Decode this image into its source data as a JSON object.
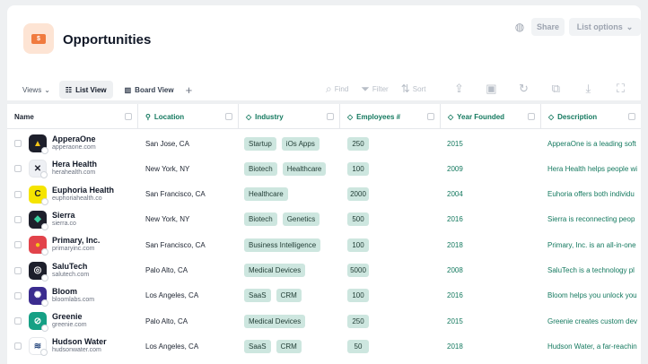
{
  "header": {
    "title": "Opportunities",
    "app_icon_glyph": "$",
    "share_label": "Share",
    "list_options_label": "List options"
  },
  "tabs": {
    "views_label": "Views",
    "list_view": "List View",
    "board_view": "Board View"
  },
  "toolbar": {
    "find": "Find",
    "filter": "Filter",
    "sort": "Sort"
  },
  "columns": {
    "name": "Name",
    "location": "Location",
    "industry": "Industry",
    "employees": "Employees #",
    "year_founded": "Year Founded",
    "description": "Description"
  },
  "rows": [
    {
      "name": "ApperaOne",
      "url": "apperaone.com",
      "location": "San Jose, CA",
      "industry": [
        "Startup",
        "iOs Apps"
      ],
      "employees": "250",
      "year": "2015",
      "description": "ApperaOne is a leading soft",
      "logo_bg": "#1d1f2b",
      "logo_fg": "#f5c518",
      "logo_glyph": "▲"
    },
    {
      "name": "Hera Health",
      "url": "herahealth.com",
      "location": "New York, NY",
      "industry": [
        "Biotech",
        "Healthcare"
      ],
      "employees": "100",
      "year": "2009",
      "description": "Hera Health helps people wi",
      "logo_bg": "#eef0f4",
      "logo_fg": "#1d1f2b",
      "logo_glyph": "✕"
    },
    {
      "name": "Euphoria Health",
      "url": "euphoriahealth.co",
      "location": "San Francisco, CA",
      "industry": [
        "Healthcare"
      ],
      "employees": "2000",
      "year": "2004",
      "description": "Euhoria offers both individu",
      "logo_bg": "#f5e400",
      "logo_fg": "#1d1f2b",
      "logo_glyph": "C"
    },
    {
      "name": "Sierra",
      "url": "sierra.co",
      "location": "New York, NY",
      "industry": [
        "Biotech",
        "Genetics"
      ],
      "employees": "500",
      "year": "2016",
      "description": "Sierra is reconnecting peop",
      "logo_bg": "#1d1f2b",
      "logo_fg": "#3bd1a0",
      "logo_glyph": "◆"
    },
    {
      "name": "Primary, Inc.",
      "url": "primaryinc.com",
      "location": "San Francisco, CA",
      "industry": [
        "Business Intelligence"
      ],
      "employees": "100",
      "year": "2018",
      "description": "Primary, Inc. is an all-in-one",
      "logo_bg": "#e2434b",
      "logo_fg": "#f5c518",
      "logo_glyph": "●"
    },
    {
      "name": "SaluTech",
      "url": "salutech.com",
      "location": "Palo Alto, CA",
      "industry": [
        "Medical Devices"
      ],
      "employees": "5000",
      "year": "2008",
      "description": "SaluTech is a technology pl",
      "logo_bg": "#1d1f2b",
      "logo_fg": "#ffffff",
      "logo_glyph": "◎"
    },
    {
      "name": "Bloom",
      "url": "bloomlabs.com",
      "location": "Los Angeles, CA",
      "industry": [
        "SaaS",
        "CRM"
      ],
      "employees": "100",
      "year": "2016",
      "description": "Bloom helps you unlock you",
      "logo_bg": "#3b2c8f",
      "logo_fg": "#ffffff",
      "logo_glyph": "✺"
    },
    {
      "name": "Greenie",
      "url": "greenie.com",
      "location": "Palo Alto, CA",
      "industry": [
        "Medical Devices"
      ],
      "employees": "250",
      "year": "2015",
      "description": "Greenie creates custom dev",
      "logo_bg": "#16a085",
      "logo_fg": "#ffffff",
      "logo_glyph": "⊘"
    },
    {
      "name": "Hudson Water",
      "url": "hudsonwater.com",
      "location": "Los Angeles, CA",
      "industry": [
        "SaaS",
        "CRM"
      ],
      "employees": "50",
      "year": "2018",
      "description": "Hudson Water, a far-reachin",
      "logo_bg": "#ffffff",
      "logo_fg": "#2a4a7f",
      "logo_glyph": "≋"
    }
  ]
}
